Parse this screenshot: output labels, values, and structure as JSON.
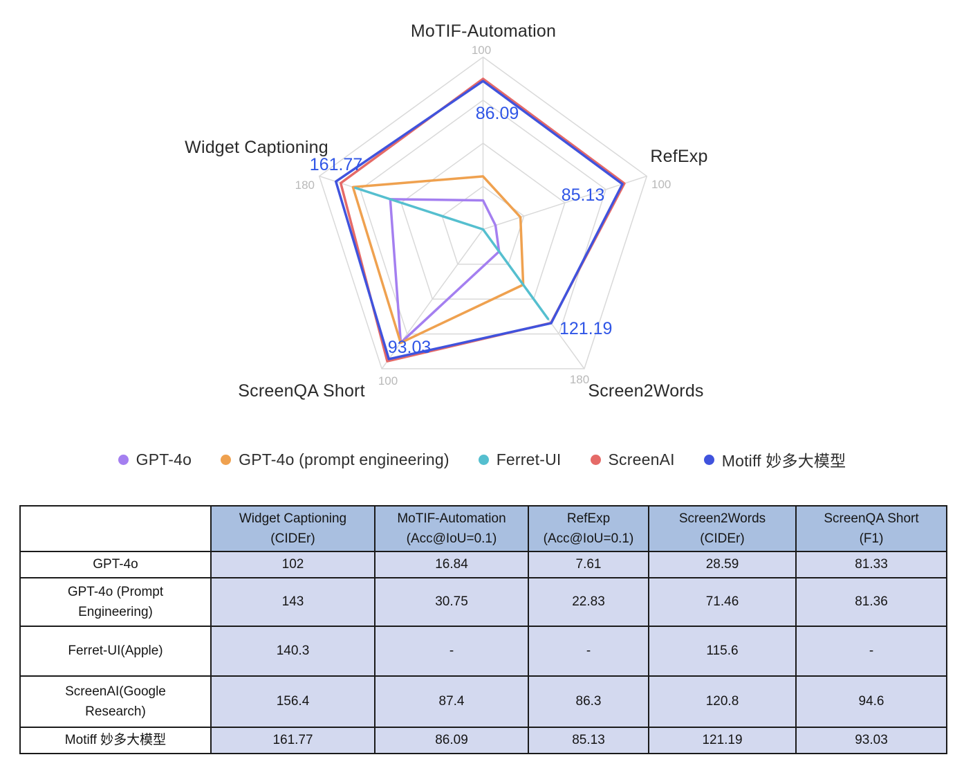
{
  "chart_data": {
    "type": "radar",
    "axes": [
      {
        "label": "MoTIF-Automation",
        "max": 100,
        "tick_label": "100"
      },
      {
        "label": "RefExp",
        "max": 100,
        "tick_label": "100"
      },
      {
        "label": "Screen2Words",
        "max": 180,
        "tick_label": "180"
      },
      {
        "label": "ScreenQA Short",
        "max": 100,
        "tick_label": "100"
      },
      {
        "label": "Widget Captioning",
        "max": 180,
        "tick_label": "180"
      }
    ],
    "grid_levels": [
      0.25,
      0.5,
      0.75,
      1
    ],
    "grid_color": "#d9d9d9",
    "tick_color": "#b9b9b9",
    "series": [
      {
        "name": "GPT-4o",
        "color": "#a47ff0",
        "values": [
          16.84,
          7.61,
          28.59,
          81.33,
          102
        ]
      },
      {
        "name": "GPT-4o (prompt engineering)",
        "color": "#efa14f",
        "values": [
          30.75,
          22.83,
          71.46,
          81.36,
          143
        ]
      },
      {
        "name": "Ferret-UI",
        "color": "#55bfcf",
        "values": [
          null,
          null,
          115.6,
          null,
          140.3
        ]
      },
      {
        "name": "ScreenAI",
        "color": "#e56a67",
        "values": [
          87.4,
          86.3,
          120.8,
          94.6,
          156.4
        ]
      },
      {
        "name": "Motiff 妙多大模型",
        "color": "#4053dd",
        "values": [
          86.09,
          85.13,
          121.19,
          93.03,
          161.77
        ],
        "labeled": true
      }
    ],
    "point_labels": [
      "86.09",
      "85.13",
      "121.19",
      "93.03",
      "161.77"
    ],
    "point_label_color": "#2f55e6"
  },
  "table": {
    "headers": [
      "",
      "Widget Captioning\n(CIDEr)",
      "MoTIF-Automation\n(Acc@IoU=0.1)",
      "RefExp\n(Acc@IoU=0.1)",
      "Screen2Words\n(CIDEr)",
      "ScreenQA Short\n(F1)"
    ],
    "rows": [
      {
        "name": "GPT-4o",
        "values": [
          "102",
          "16.84",
          "7.61",
          "28.59",
          "81.33"
        ]
      },
      {
        "name": "GPT-4o (Prompt\nEngineering)",
        "values": [
          "143",
          "30.75",
          "22.83",
          "71.46",
          "81.36"
        ]
      },
      {
        "name": "Ferret-UI(Apple)",
        "values": [
          "140.3",
          "-",
          "-",
          "115.6",
          "-"
        ]
      },
      {
        "name": "ScreenAI(Google\nResearch)",
        "values": [
          "156.4",
          "87.4",
          "86.3",
          "120.8",
          "94.6"
        ]
      },
      {
        "name": "Motiff 妙多大模型",
        "values": [
          "161.77",
          "86.09",
          "85.13",
          "121.19",
          "93.03"
        ]
      }
    ]
  }
}
